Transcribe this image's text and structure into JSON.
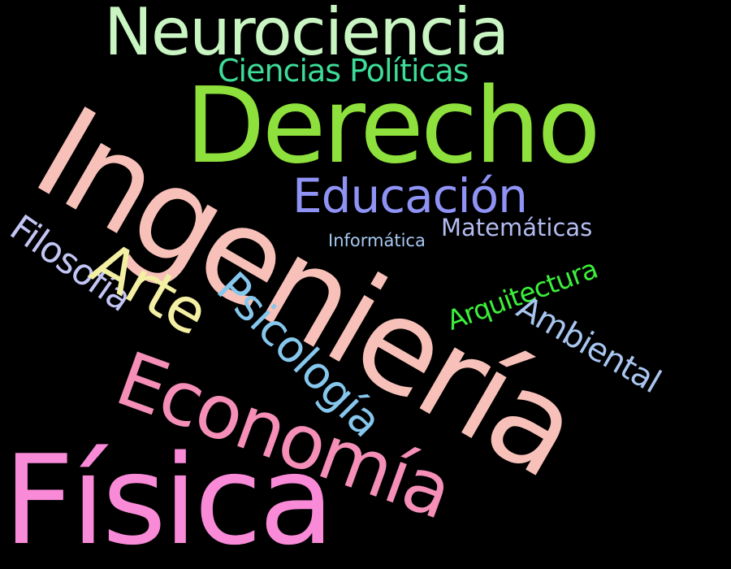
{
  "background_color": "#000000",
  "words": {
    "neurociencia": {
      "text": "Neurociencia",
      "color": "#c9f5c2"
    },
    "ciencias_politicas": {
      "text": "Ciencias Políticas",
      "color": "#3ddc97"
    },
    "derecho": {
      "text": "Derecho",
      "color": "#8ee03c"
    },
    "ingenieria": {
      "text": "Ingeniería",
      "color": "#f7c1b9"
    },
    "educacion": {
      "text": "Educación",
      "color": "#8f93f5"
    },
    "matematicas": {
      "text": "Matemáticas",
      "color": "#b3bdf2"
    },
    "informatica": {
      "text": "Informática",
      "color": "#a7c9f2"
    },
    "arquitectura": {
      "text": "Arquitectura",
      "color": "#3bf03b"
    },
    "ambiental": {
      "text": "Ambiental",
      "color": "#a8c6f0"
    },
    "filosofia": {
      "text": "Filosofía",
      "color": "#c3c6f5"
    },
    "arte": {
      "text": "Arte",
      "color": "#f3f0a4"
    },
    "psicologia": {
      "text": "Psicología",
      "color": "#86c7ee"
    },
    "economia": {
      "text": "Economía",
      "color": "#f58fb8"
    },
    "fisica": {
      "text": "Física",
      "color": "#f98ad8"
    }
  }
}
